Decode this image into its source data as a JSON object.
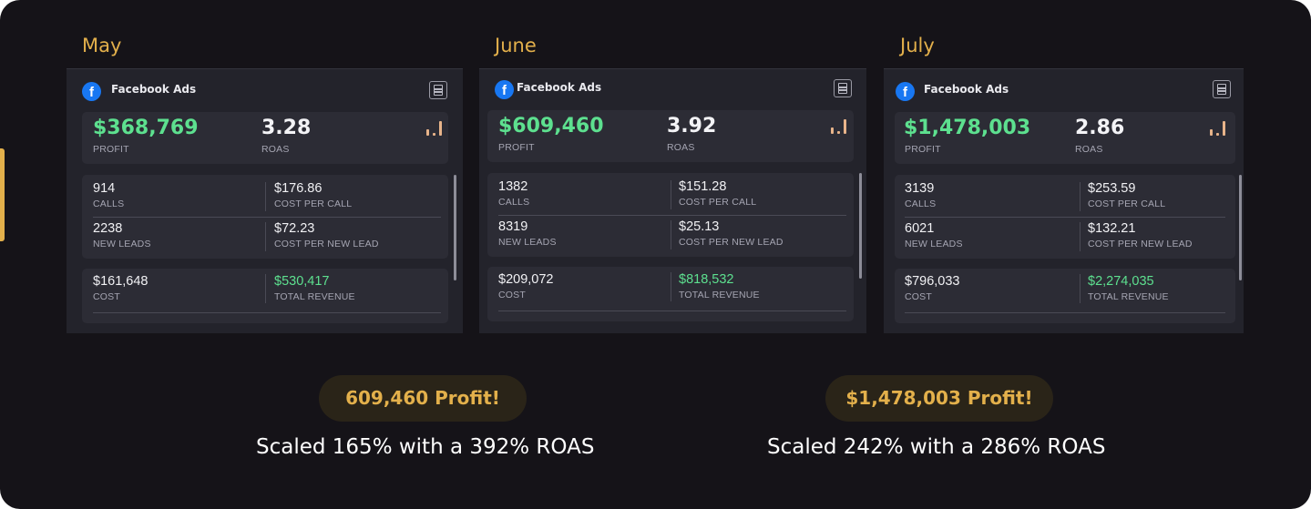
{
  "months": [
    {
      "label": "May",
      "card_title": "Facebook Ads",
      "profit_value": "$368,769",
      "profit_label": "PROFIT",
      "roas_value": "3.28",
      "roas_label": "ROAS",
      "calls_value": "914",
      "calls_label": "CALLS",
      "cost_per_call_value": "$176.86",
      "cost_per_call_label": "COST PER CALL",
      "new_leads_value": "2238",
      "new_leads_label": "NEW LEADS",
      "cost_per_new_lead_value": "$72.23",
      "cost_per_new_lead_label": "COST PER NEW LEAD",
      "cost_value": "$161,648",
      "cost_label": "COST",
      "total_revenue_value": "$530,417",
      "total_revenue_label": "TOTAL REVENUE"
    },
    {
      "label": "June",
      "card_title": "Facebook Ads",
      "profit_value": "$609,460",
      "profit_label": "PROFIT",
      "roas_value": "3.92",
      "roas_label": "ROAS",
      "calls_value": "1382",
      "calls_label": "CALLS",
      "cost_per_call_value": "$151.28",
      "cost_per_call_label": "COST PER CALL",
      "new_leads_value": "8319",
      "new_leads_label": "NEW LEADS",
      "cost_per_new_lead_value": "$25.13",
      "cost_per_new_lead_label": "COST PER NEW LEAD",
      "cost_value": "$209,072",
      "cost_label": "COST",
      "total_revenue_value": "$818,532",
      "total_revenue_label": "TOTAL REVENUE"
    },
    {
      "label": "July",
      "card_title": "Facebook Ads",
      "profit_value": "$1,478,003",
      "profit_label": "PROFIT",
      "roas_value": "2.86",
      "roas_label": "ROAS",
      "calls_value": "3139",
      "calls_label": "CALLS",
      "cost_per_call_value": "$253.59",
      "cost_per_call_label": "COST PER CALL",
      "new_leads_value": "6021",
      "new_leads_label": "NEW LEADS",
      "cost_per_new_lead_value": "$132.21",
      "cost_per_new_lead_label": "COST PER NEW LEAD",
      "cost_value": "$796,033",
      "cost_label": "COST",
      "total_revenue_value": "$2,274,035",
      "total_revenue_label": "TOTAL REVENUE"
    }
  ],
  "highlights": [
    {
      "badge": "609,460 Profit!",
      "caption": "Scaled 165% with a 392% ROAS"
    },
    {
      "badge": "$1,478,003 Profit!",
      "caption": "Scaled 242% with a 286% ROAS"
    }
  ],
  "colors": {
    "background": "#151318",
    "gold": "#e3b04b",
    "profit_green": "#5de08f",
    "card": "#23232b",
    "panel": "#2c2c35",
    "facebook_blue": "#1877f2"
  },
  "icons": [
    "facebook-icon",
    "report-icon",
    "bar-chart-icon"
  ]
}
